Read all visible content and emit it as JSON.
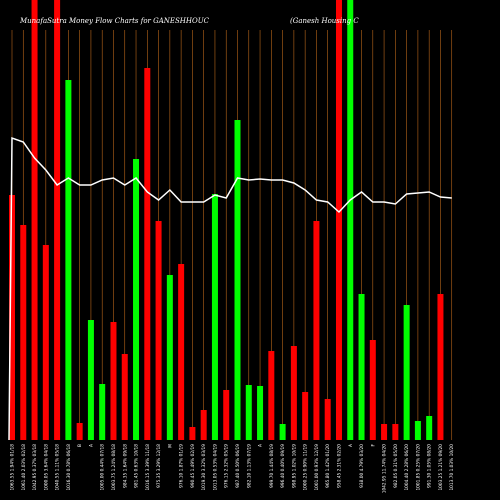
{
  "chart_data": {
    "type": "bar",
    "title": "MunafaSutra  Money Flow  Charts for GANESHHOUC",
    "subtitle": "(Ganesh Housing C",
    "ylim": [
      0,
      440
    ],
    "grid": true,
    "colors": {
      "up": "#00ff00",
      "down": "#ff0000",
      "line": "#ffffff",
      "grid": "#b8661a",
      "background": "#000000"
    },
    "categories": [
      "1063.55 1.94% 01/18",
      "1061.40 2.03% 02/18",
      "1042.95 0.37% 03/18",
      "1000.05 3.64% 04/18",
      "1040.55 1.11% 05/18",
      "1016.30 0.78% 06/18",
      "B",
      "A",
      "1005.00 0.44% 07/18",
      "1003.75 1.24% 08/18",
      "984.35 1.64% 09/18",
      "981.45 0.63% 10/18",
      "1016.15 3.39% 11/18",
      "975.35 3.29% 12/18",
      "M",
      "976.10 1.87% 01/19",
      "990.45 1.49% 02/19",
      "1019.30 3.32% 03/19",
      "1013.05 0.53% 04/19",
      "976.15 2.32% 05/19",
      "987.40 0.50% 06/19",
      "982.10 1.13% 07/19",
      "A",
      "999.70 1.44% 08/19",
      "996.40 0.40% 09/19",
      "998.95 1.02% 10/19",
      "1000.25 0.90% 11/19",
      "1001.00 0.93% 12/19",
      "965.80 1.42% 01/20",
      "958.45 2.31% 02/20",
      "A",
      "938.00 4.79% 03/20",
      "F",
      "1042.95 11.74% 04/20",
      "982.05 0.31% 05/20",
      "1004.40 2.28% 06/20",
      "1001.85 0.25% 07/20",
      "991.30 1.05% 08/20",
      "1003.25 1.21% 09/20",
      "1013.70 1.03% 10/20"
    ],
    "values": [
      245,
      215,
      440,
      195,
      440,
      360,
      17,
      120,
      56,
      118,
      86,
      281,
      372,
      219,
      165,
      176,
      13,
      30,
      246,
      50,
      320,
      55,
      54,
      89,
      16,
      94,
      48,
      219,
      41,
      440,
      440,
      146,
      100,
      16,
      16,
      135,
      19,
      24,
      146,
      0
    ],
    "directions": [
      "down",
      "down",
      "down",
      "down",
      "down",
      "up",
      "down",
      "up",
      "up",
      "down",
      "down",
      "up",
      "down",
      "down",
      "up",
      "down",
      "down",
      "down",
      "up",
      "down",
      "up",
      "up",
      "up",
      "down",
      "up",
      "down",
      "down",
      "down",
      "down",
      "down",
      "up",
      "up",
      "down",
      "down",
      "down",
      "up",
      "up",
      "up",
      "down",
      "down"
    ],
    "line_values": [
      302,
      298,
      282,
      270,
      255,
      262,
      255,
      255,
      260,
      262,
      255,
      262,
      248,
      240,
      250,
      238,
      238,
      238,
      245,
      242,
      262,
      260,
      261,
      260,
      260,
      257,
      250,
      240,
      238,
      228,
      240,
      248,
      238,
      238,
      236,
      246,
      247,
      248,
      243,
      242
    ]
  }
}
